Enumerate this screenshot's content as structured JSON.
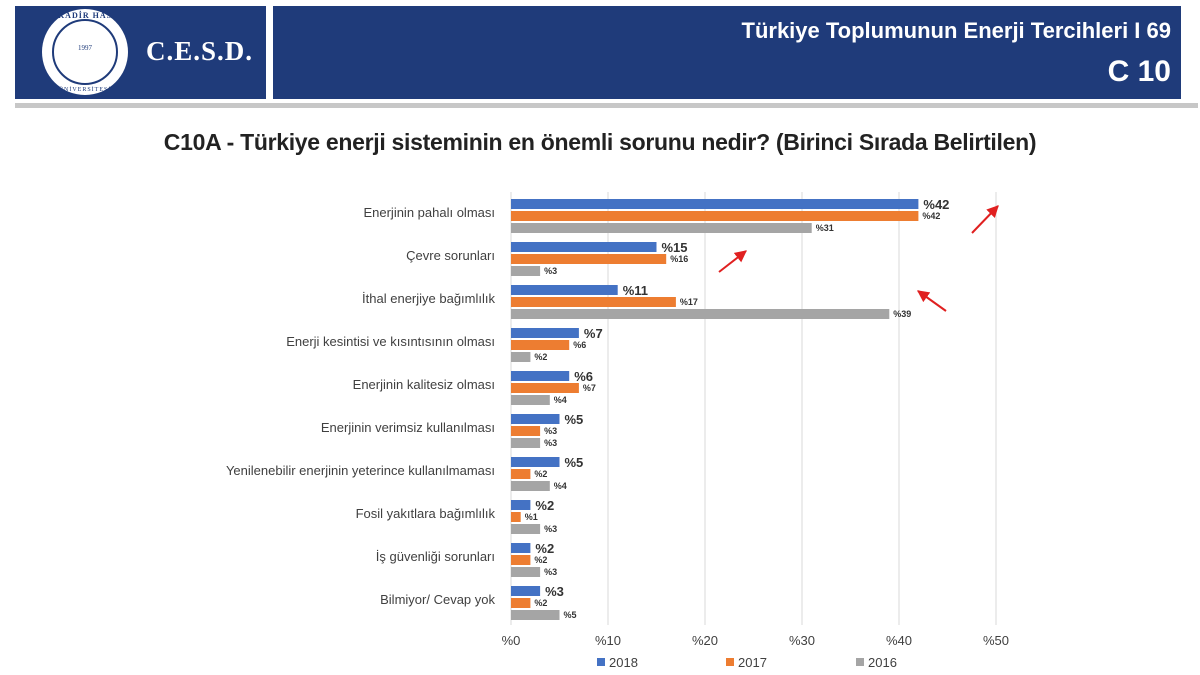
{
  "header": {
    "brand": "C.E.S.D.",
    "seal_top": "KADİR HAS",
    "seal_year": "1997",
    "seal_bottom": "ÜNİVERSİTESİ",
    "title": "Türkiye Toplumunun Enerji Tercihleri  I 69",
    "code": "C 10"
  },
  "question": "C10A - Türkiye enerji sisteminin en önemli sorunu nedir? (Birinci Sırada Belirtilen)",
  "chart_data": {
    "type": "bar",
    "orientation": "horizontal",
    "categories": [
      "Enerjinin pahalı olması",
      "Çevre sorunları",
      "İthal enerjiye bağımlılık",
      "Enerji kesintisi ve kısıntısının olması",
      "Enerjinin kalitesiz olması",
      "Enerjinin verimsiz kullanılması",
      "Yenilenebilir enerjinin yeterince kullanılmaması",
      "Fosil yakıtlara bağımlılık",
      "İş güvenliği sorunları",
      "Bilmiyor/ Cevap yok"
    ],
    "series": [
      {
        "name": "2018",
        "color": "#4472c4",
        "values": [
          42,
          15,
          11,
          7,
          6,
          5,
          5,
          2,
          2,
          3
        ],
        "labels": [
          "%42",
          "%15",
          "%11",
          "%7",
          "%6",
          "%5",
          "%5",
          "%2",
          "%2",
          "%3"
        ]
      },
      {
        "name": "2017",
        "color": "#ed7d31",
        "values": [
          42,
          16,
          17,
          6,
          7,
          3,
          2,
          1,
          2,
          2
        ],
        "labels": [
          "%42",
          "%16",
          "%17",
          "%6",
          "%7",
          "%3",
          "%2",
          "%1",
          "%2",
          "%2"
        ]
      },
      {
        "name": "2016",
        "color": "#a5a5a5",
        "values": [
          31,
          3,
          39,
          2,
          4,
          3,
          4,
          3,
          3,
          5
        ],
        "labels": [
          "%31",
          "%3",
          "%39",
          "%2",
          "%4",
          "%3",
          "%4",
          "%3",
          "%3",
          "%5"
        ]
      }
    ],
    "xlim": [
      0,
      50
    ],
    "xticks": [
      0,
      10,
      20,
      30,
      40,
      50
    ],
    "xtick_labels": [
      "%0",
      "%10",
      "%20",
      "%30",
      "%40",
      "%50"
    ],
    "grid": "vertical",
    "legend": "bottom",
    "annotation_color": "#e02020"
  }
}
